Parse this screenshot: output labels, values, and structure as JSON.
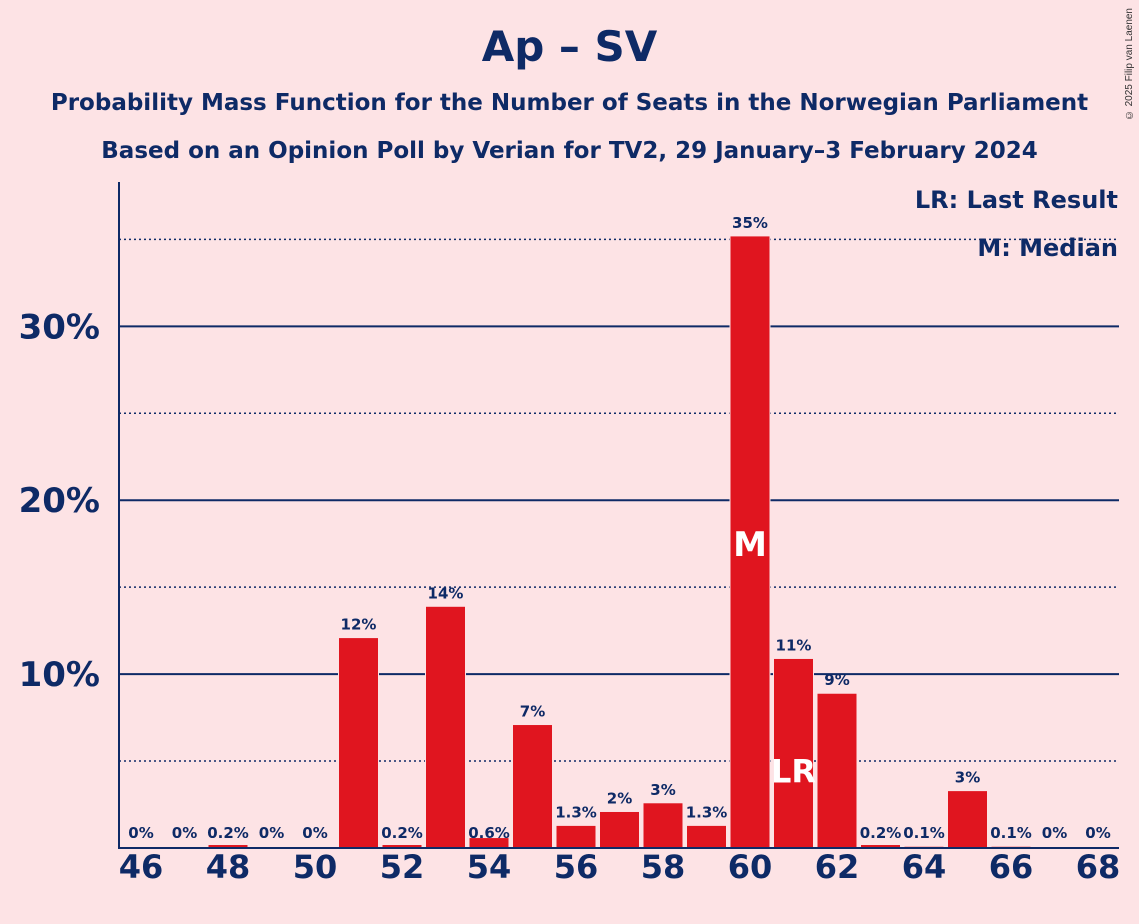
{
  "header": {
    "title": "Ap – SV",
    "subtitle1": "Probability Mass Function for the Number of Seats in the Norwegian Parliament",
    "subtitle2": "Based on an Opinion Poll by Verian for TV2, 29 January–3 February 2024",
    "copyright": "© 2025 Filip van Laenen"
  },
  "legend": {
    "last_result": "LR: Last Result",
    "median": "M: Median"
  },
  "colors": {
    "background": "#FDE3E5",
    "bar": "#E0151F",
    "text": "#0E2A66"
  },
  "chart_data": {
    "type": "bar",
    "x": [
      46,
      47,
      48,
      49,
      50,
      51,
      52,
      53,
      54,
      55,
      56,
      57,
      58,
      59,
      60,
      61,
      62,
      63,
      64,
      65,
      66,
      67,
      68
    ],
    "values": [
      0,
      0,
      0.2,
      0,
      0,
      12.1,
      0.2,
      13.9,
      0.6,
      7.1,
      1.3,
      2.1,
      2.6,
      1.3,
      35.2,
      10.9,
      8.9,
      0.2,
      0.1,
      3.3,
      0.1,
      0,
      0
    ],
    "data_labels": [
      "0%",
      "0%",
      "0.2%",
      "0%",
      "0%",
      "12%",
      "0.2%",
      "14%",
      "0.6%",
      "7%",
      "1.3%",
      "2%",
      "3%",
      "1.3%",
      "35%",
      "11%",
      "9%",
      "0.2%",
      "0.1%",
      "3%",
      "0.1%",
      "0%",
      "0%"
    ],
    "x_tick_labels": [
      "46",
      "48",
      "50",
      "52",
      "54",
      "56",
      "58",
      "60",
      "62",
      "64",
      "66",
      "68"
    ],
    "y_ticks": [
      10,
      20,
      30
    ],
    "y_tick_labels": [
      "10%",
      "20%",
      "30%"
    ],
    "ylim": [
      0,
      38.3
    ],
    "minor_gridlines": [
      5,
      15,
      25,
      35
    ],
    "median_seat": 60,
    "median_marker": "M",
    "last_result_seat": 61,
    "last_result_marker": "LR"
  }
}
